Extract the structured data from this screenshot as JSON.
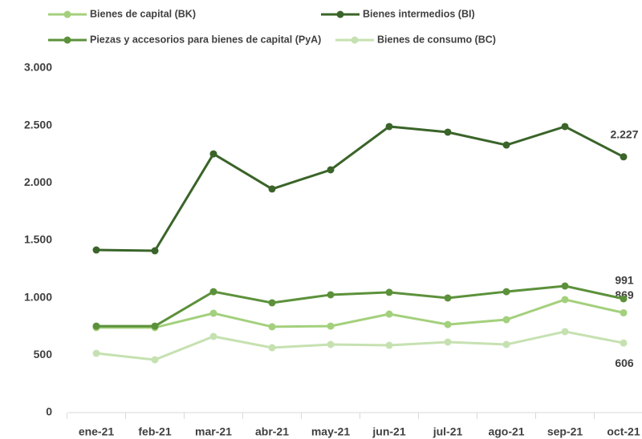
{
  "chart_data": {
    "type": "line",
    "categories": [
      "ene-21",
      "feb-21",
      "mar-21",
      "abr-21",
      "may-21",
      "jun-21",
      "jul-21",
      "ago-21",
      "sep-21",
      "oct-21"
    ],
    "series": [
      {
        "name": "Bienes de capital (BK)",
        "color": "#a3d07c",
        "values": [
          740,
          740,
          865,
          747,
          753,
          858,
          767,
          809,
          984,
          869
        ],
        "value_labels": [
          null,
          null,
          null,
          null,
          null,
          null,
          null,
          null,
          null,
          "869"
        ]
      },
      {
        "name": "Bienes intermedios (BI)",
        "color": "#3a6429",
        "values": [
          1416,
          1409,
          2253,
          1947,
          2114,
          2491,
          2442,
          2330,
          2491,
          2227
        ],
        "value_labels": [
          null,
          null,
          null,
          null,
          null,
          null,
          null,
          null,
          null,
          "2.227"
        ]
      },
      {
        "name": "Piezas y accesorios para bienes de capital (PyA)",
        "color": "#5c913b",
        "values": [
          753,
          753,
          1053,
          956,
          1026,
          1047,
          998,
          1053,
          1102,
          991
        ],
        "value_labels": [
          null,
          null,
          null,
          null,
          null,
          null,
          null,
          null,
          null,
          "991"
        ]
      },
      {
        "name": "Bienes de consumo (BC)",
        "color": "#c6e1b1",
        "values": [
          516,
          460,
          663,
          565,
          593,
          586,
          614,
          593,
          705,
          606
        ],
        "value_labels": [
          null,
          null,
          null,
          null,
          null,
          null,
          null,
          null,
          null,
          "606"
        ]
      }
    ],
    "ylim": [
      0,
      3000
    ],
    "yticks": [
      0,
      500,
      {
        "value": 1000,
        "label": "1.000"
      },
      {
        "value": 1500,
        "label": "1.500"
      },
      {
        "value": 2000,
        "label": "2.000"
      },
      {
        "value": 2500,
        "label": "2.500"
      },
      {
        "value": 3000,
        "label": "3.000"
      }
    ],
    "grid": false
  }
}
